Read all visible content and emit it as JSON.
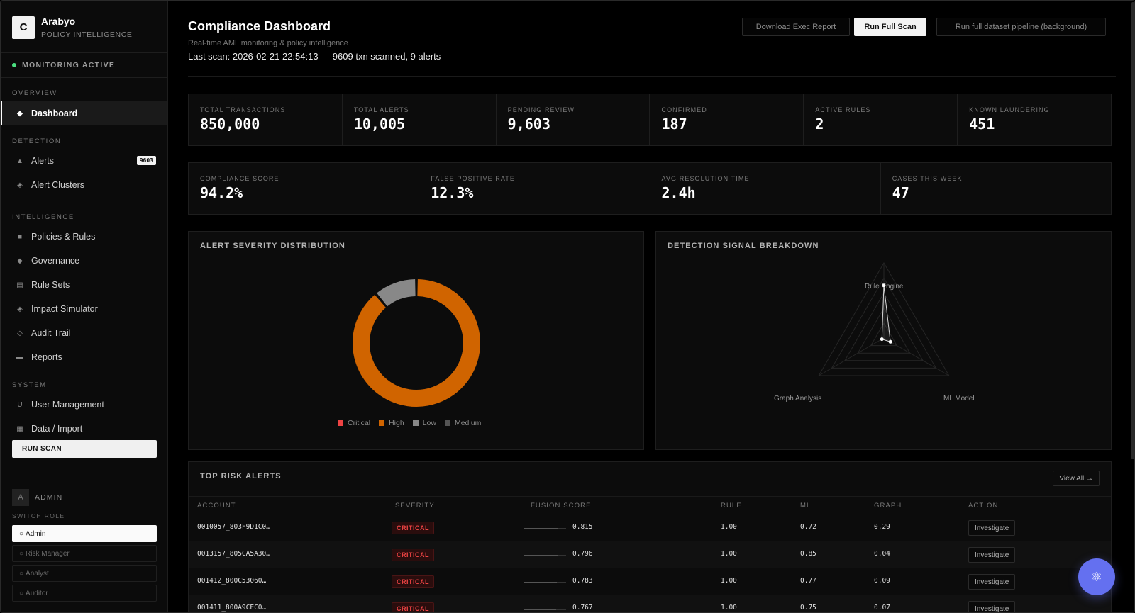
{
  "brand": {
    "logo_letter": "C",
    "name": "Arabyo",
    "subtitle": "POLICY INTELLIGENCE"
  },
  "status": {
    "label": "MONITORING ACTIVE",
    "color": "#4ade80"
  },
  "sidebar": {
    "sections": {
      "overview": "OVERVIEW",
      "detection": "DETECTION",
      "intelligence": "INTELLIGENCE",
      "system": "SYSTEM"
    },
    "items": {
      "dashboard": {
        "label": "Dashboard",
        "icon": "diamond-icon"
      },
      "alerts": {
        "label": "Alerts",
        "icon": "triangle-icon",
        "badge": "9603"
      },
      "alert_clusters": {
        "label": "Alert Clusters",
        "icon": "cluster-icon"
      },
      "policies": {
        "label": "Policies & Rules",
        "icon": "square-icon"
      },
      "governance": {
        "label": "Governance",
        "icon": "diamond-icon"
      },
      "rule_sets": {
        "label": "Rule Sets",
        "icon": "list-icon"
      },
      "impact_simulator": {
        "label": "Impact Simulator",
        "icon": "target-icon"
      },
      "audit_trail": {
        "label": "Audit Trail",
        "icon": "diamond-outline-icon"
      },
      "reports": {
        "label": "Reports",
        "icon": "report-icon"
      },
      "user_management": {
        "label": "User Management",
        "icon": "user-icon"
      },
      "data_import": {
        "label": "Data / Import",
        "icon": "grid-icon"
      }
    },
    "run_scan": "RUN SCAN",
    "user": {
      "avatar_letter": "A",
      "role": "ADMIN"
    },
    "switch_role_label": "SWITCH ROLE",
    "roles": [
      "Admin",
      "Risk Manager",
      "Analyst",
      "Auditor"
    ],
    "active_role": "Admin"
  },
  "header": {
    "title": "Compliance Dashboard",
    "subtitle": "Real-time AML monitoring & policy intelligence",
    "last_scan": "Last scan: 2026-02-21 22:54:13 — 9609 txn scanned, 9 alerts",
    "buttons": {
      "download": "Download Exec Report",
      "run_full_scan": "Run Full Scan",
      "pipeline": "Run full dataset pipeline (background)"
    }
  },
  "stats_row1": [
    {
      "label": "TOTAL TRANSACTIONS",
      "value": "850,000"
    },
    {
      "label": "TOTAL ALERTS",
      "value": "10,005"
    },
    {
      "label": "PENDING REVIEW",
      "value": "9,603"
    },
    {
      "label": "CONFIRMED",
      "value": "187"
    },
    {
      "label": "ACTIVE RULES",
      "value": "2"
    },
    {
      "label": "KNOWN LAUNDERING",
      "value": "451"
    }
  ],
  "stats_row2": [
    {
      "label": "COMPLIANCE SCORE",
      "value": "94.2%"
    },
    {
      "label": "FALSE POSITIVE RATE",
      "value": "12.3%"
    },
    {
      "label": "AVG RESOLUTION TIME",
      "value": "2.4h"
    },
    {
      "label": "CASES THIS WEEK",
      "value": "47"
    }
  ],
  "chart_data": [
    {
      "type": "pie",
      "title": "ALERT SEVERITY DISTRIBUTION",
      "donut": true,
      "categories": [
        "Critical",
        "High",
        "Low",
        "Medium"
      ],
      "values": [
        0.0,
        89.0,
        11.0,
        0.0
      ],
      "colors": [
        "#ef4444",
        "#d06400",
        "#888888",
        "#555555"
      ],
      "legend_position": "bottom"
    },
    {
      "type": "radar",
      "title": "DETECTION SIGNAL BREAKDOWN",
      "axes": [
        "Rule Engine",
        "ML Model",
        "Graph Analysis"
      ],
      "values": [
        0.7,
        0.1,
        0.03
      ],
      "range": [
        0,
        1
      ],
      "grid": true
    }
  ],
  "alerts_table": {
    "title": "TOP RISK ALERTS",
    "view_all": "View All →",
    "columns": [
      "ACCOUNT",
      "SEVERITY",
      "FUSION SCORE",
      "RULE",
      "ML",
      "GRAPH",
      "ACTION"
    ],
    "rows": [
      {
        "account": "0010057_803F9D1C0…",
        "severity": "CRITICAL",
        "fusion": "0.815",
        "fusion_value": 0.815,
        "rule": "1.00",
        "ml": "0.72",
        "graph": "0.29",
        "action": "Investigate"
      },
      {
        "account": "0013157_805CA5A30…",
        "severity": "CRITICAL",
        "fusion": "0.796",
        "fusion_value": 0.796,
        "rule": "1.00",
        "ml": "0.85",
        "graph": "0.04",
        "action": "Investigate"
      },
      {
        "account": "001412_800C53060…",
        "severity": "CRITICAL",
        "fusion": "0.783",
        "fusion_value": 0.783,
        "rule": "1.00",
        "ml": "0.77",
        "graph": "0.09",
        "action": "Investigate"
      },
      {
        "account": "001411_800A9CEC0…",
        "severity": "CRITICAL",
        "fusion": "0.767",
        "fusion_value": 0.767,
        "rule": "1.00",
        "ml": "0.75",
        "graph": "0.07",
        "action": "Investigate"
      }
    ]
  },
  "fab": {
    "icon": "atom-icon"
  }
}
